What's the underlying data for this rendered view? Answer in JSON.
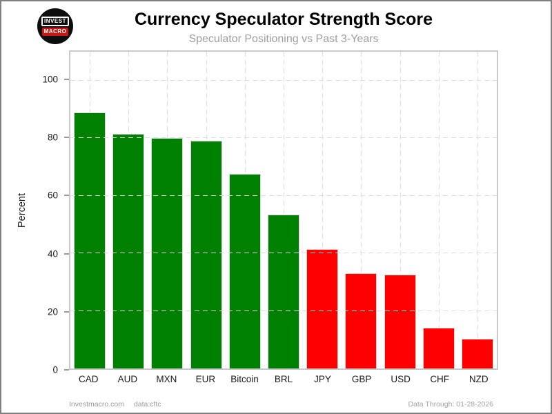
{
  "header": {
    "title": "Currency Speculator Strength Score",
    "subtitle": "Speculator Positioning vs Past 3-Years",
    "logo": {
      "line1": "INVEST",
      "line2": "MACRO"
    }
  },
  "footer": {
    "site": "Investmacro.com",
    "source": "data:cftc",
    "data_through": "Data Through: 01-28-2026"
  },
  "chart_data": {
    "type": "bar",
    "title": "Currency Speculator Strength Score",
    "subtitle": "Speculator Positioning vs Past 3-Years",
    "xlabel": "",
    "ylabel": "Percent",
    "ylim": [
      0,
      110
    ],
    "yticks": [
      0,
      20,
      40,
      60,
      80,
      100
    ],
    "grid": "dashed",
    "legend_position": "none",
    "categories": [
      "CAD",
      "AUD",
      "MXN",
      "EUR",
      "Bitcoin",
      "BRL",
      "JPY",
      "GBP",
      "USD",
      "CHF",
      "NZD"
    ],
    "values": [
      89,
      81.5,
      80,
      79,
      67.5,
      53.5,
      41.5,
      33,
      32.5,
      14.2,
      10.3
    ],
    "bar_color_keys": [
      "green",
      "green",
      "green",
      "green",
      "green",
      "green",
      "red",
      "red",
      "red",
      "red",
      "red"
    ],
    "colors": {
      "green": "#008000",
      "red": "#ff0000"
    }
  }
}
